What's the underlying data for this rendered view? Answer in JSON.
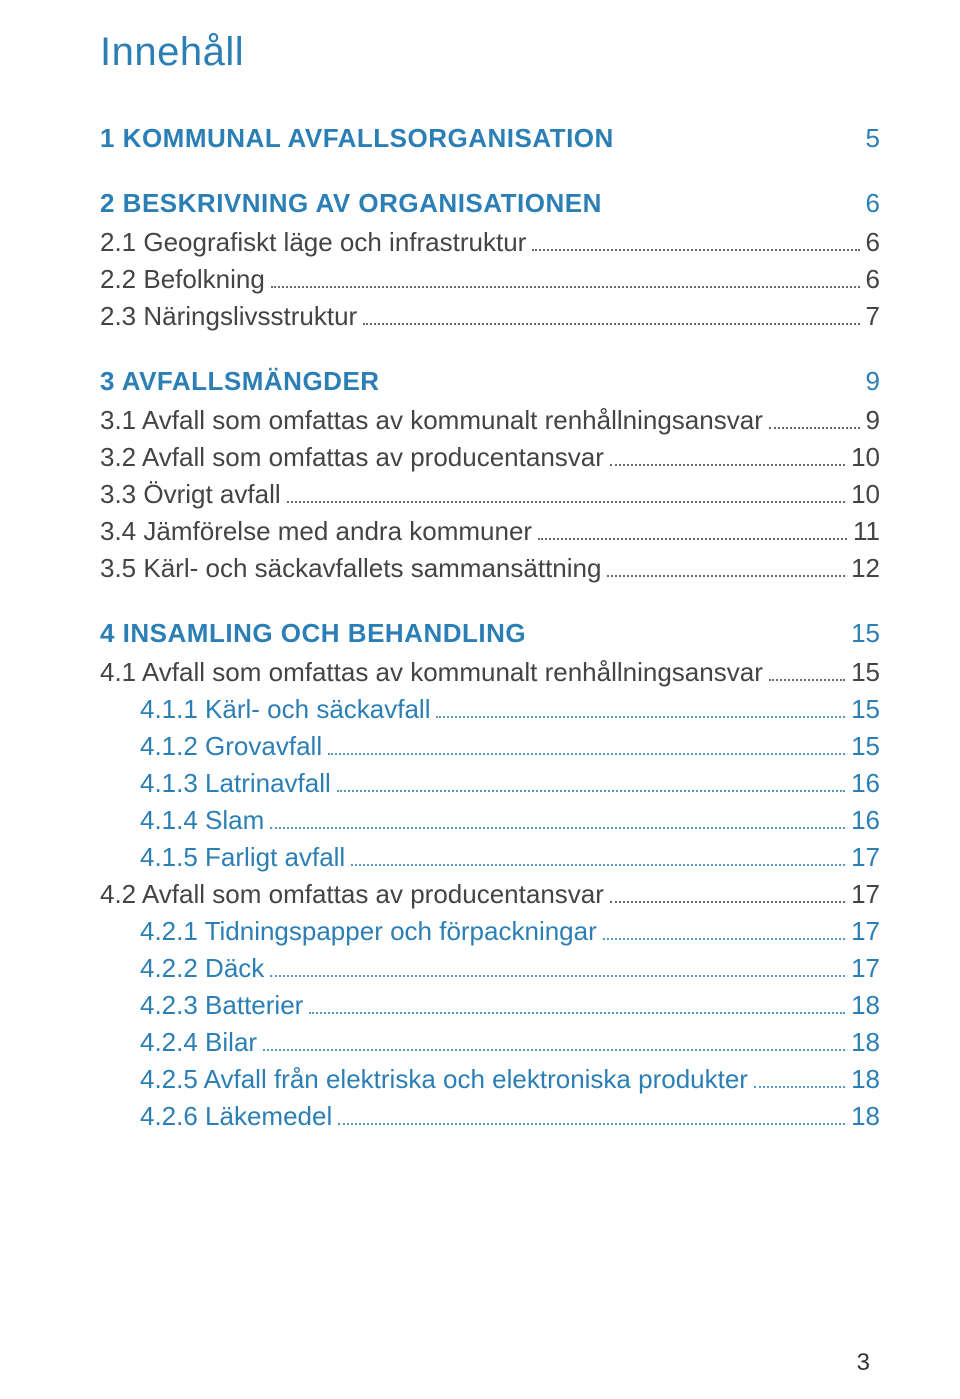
{
  "title": "Innehåll",
  "colors": {
    "accent": "#2b7fb5",
    "body_text": "#444444",
    "background": "#ffffff"
  },
  "typography": {
    "title_fontsize_pt": 30,
    "entry_fontsize_pt": 20,
    "title_weight": 300,
    "section_weight": 600
  },
  "page_number": "3",
  "toc": [
    {
      "type": "section",
      "label": "1 KOMMUNAL AVFALLSORGANISATION",
      "page": "5"
    },
    {
      "type": "section",
      "label": "2 BESKRIVNING AV ORGANISATIONEN",
      "page": "6"
    },
    {
      "type": "lvl1",
      "label": "2.1 Geografiskt läge och infrastruktur",
      "page": "6"
    },
    {
      "type": "lvl1",
      "label": "2.2 Befolkning",
      "page": "6"
    },
    {
      "type": "lvl1",
      "label": "2.3 Näringslivsstruktur",
      "page": "7"
    },
    {
      "type": "section",
      "label": "3 AVFALLSMÄNGDER",
      "page": "9"
    },
    {
      "type": "lvl1",
      "label": "3.1 Avfall som omfattas av kommunalt renhållningsansvar",
      "page": "9"
    },
    {
      "type": "lvl1",
      "label": "3.2 Avfall som omfattas av producentansvar",
      "page": "10"
    },
    {
      "type": "lvl1",
      "label": "3.3 Övrigt avfall",
      "page": "10"
    },
    {
      "type": "lvl1",
      "label": "3.4 Jämförelse med andra kommuner",
      "page": "11"
    },
    {
      "type": "lvl1",
      "label": "3.5 Kärl- och säckavfallets sammansättning",
      "page": "12"
    },
    {
      "type": "section",
      "label": "4 INSAMLING OCH BEHANDLING",
      "page": "15"
    },
    {
      "type": "lvl1",
      "label": "4.1 Avfall som omfattas av kommunalt renhållningsansvar",
      "page": "15"
    },
    {
      "type": "lvl2",
      "label": "4.1.1 Kärl- och säckavfall",
      "page": "15"
    },
    {
      "type": "lvl2",
      "label": "4.1.2 Grovavfall",
      "page": "15"
    },
    {
      "type": "lvl2",
      "label": "4.1.3 Latrinavfall",
      "page": "16"
    },
    {
      "type": "lvl2",
      "label": "4.1.4 Slam",
      "page": "16"
    },
    {
      "type": "lvl2",
      "label": "4.1.5 Farligt avfall",
      "page": "17"
    },
    {
      "type": "lvl1",
      "label": "4.2 Avfall som omfattas av producentansvar",
      "page": "17"
    },
    {
      "type": "lvl2",
      "label": "4.2.1 Tidningspapper och förpackningar",
      "page": "17"
    },
    {
      "type": "lvl2",
      "label": "4.2.2 Däck",
      "page": "17"
    },
    {
      "type": "lvl2",
      "label": "4.2.3 Batterier",
      "page": "18"
    },
    {
      "type": "lvl2",
      "label": "4.2.4 Bilar",
      "page": "18"
    },
    {
      "type": "lvl2",
      "label": "4.2.5 Avfall från elektriska och elektroniska produkter",
      "page": "18"
    },
    {
      "type": "lvl2",
      "label": "4.2.6 Läkemedel",
      "page": "18"
    }
  ]
}
